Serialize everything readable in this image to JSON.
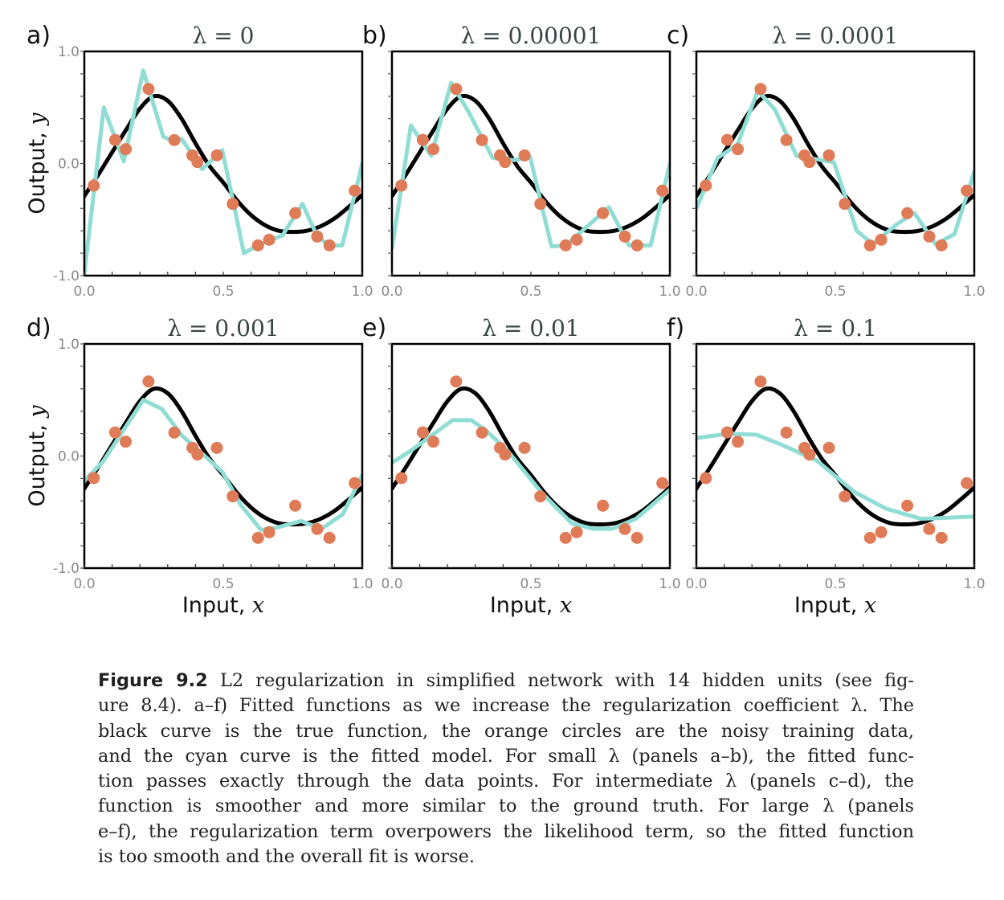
{
  "colors": {
    "true_curve": "#000000",
    "fitted_curve": "#8fddd4",
    "data_points": "#e07b57",
    "frame": "#000000",
    "tick_label": "#8a8a8a",
    "title": "#3a4646"
  },
  "caption": {
    "label": "Figure 9.2",
    "lines": [
      " L2 regularization in simplified network with 14 hidden units (see fig-",
      "ure 8.4).  a–f) Fitted functions as we increase the regularization coefficient λ. The",
      "black curve is the true function, the orange circles are the noisy training data,",
      "and the cyan curve is the fitted model. For small λ (panels a–b), the fitted func-",
      "tion passes exactly through the data points. For intermediate λ (panels c–d), the",
      "function is smoother and more similar to the ground truth. For large λ (panels",
      "e–f), the regularization term overpowers the likelihood term, so the fitted function",
      "is too smooth and the overall fit is worse."
    ]
  },
  "chart_data": [
    {
      "type": "line",
      "panel": "a)",
      "title": "λ = 0",
      "xlabel": "",
      "ylabel": "Output, y",
      "xlim": [
        0,
        1
      ],
      "ylim": [
        -1,
        1
      ],
      "xticks": [
        "0.0",
        "0.5",
        "1.0"
      ],
      "yticks": [
        "1.0",
        "0.0",
        "-1.0"
      ],
      "show_y_tick_labels": true,
      "grid": false,
      "fitted": {
        "x": [
          0,
          0.07,
          0.142,
          0.212,
          0.284,
          0.318,
          0.35,
          0.424,
          0.477,
          0.496,
          0.535,
          0.574,
          0.625,
          0.713,
          0.785,
          0.838,
          0.882,
          0.928,
          1.0
        ],
        "y": [
          -0.98,
          0.5,
          0.02,
          0.83,
          0.24,
          0.2,
          0.22,
          -0.05,
          0.07,
          0.12,
          -0.33,
          -0.8,
          -0.73,
          -0.64,
          -0.36,
          -0.65,
          -0.73,
          -0.73,
          0.0
        ]
      }
    },
    {
      "type": "line",
      "panel": "b)",
      "title": "λ = 0.00001",
      "xlabel": "",
      "ylabel": "",
      "xlim": [
        0,
        1
      ],
      "ylim": [
        -1,
        1
      ],
      "xticks": [
        "0.0",
        "0.5",
        "1.0"
      ],
      "yticks": [],
      "show_y_tick_labels": false,
      "grid": false,
      "fitted": {
        "x": [
          0,
          0.068,
          0.141,
          0.213,
          0.276,
          0.362,
          0.439,
          0.497,
          0.574,
          0.625,
          0.781,
          0.853,
          0.931,
          1.0
        ],
        "y": [
          -0.76,
          0.34,
          0.07,
          0.72,
          0.46,
          0.05,
          0.03,
          0.06,
          -0.74,
          -0.73,
          -0.39,
          -0.73,
          -0.73,
          0.0
        ]
      }
    },
    {
      "type": "line",
      "panel": "c)",
      "title": "λ = 0.0001",
      "xlabel": "",
      "ylabel": "",
      "xlim": [
        0,
        1
      ],
      "ylim": [
        -1,
        1
      ],
      "xticks": [
        "0.0",
        "0.5",
        "1.0"
      ],
      "yticks": [],
      "show_y_tick_labels": false,
      "grid": false,
      "fitted": {
        "x": [
          0,
          0.076,
          0.148,
          0.221,
          0.283,
          0.36,
          0.495,
          0.577,
          0.635,
          0.722,
          0.784,
          0.861,
          0.929,
          1.0
        ],
        "y": [
          -0.4,
          0.05,
          0.17,
          0.65,
          0.48,
          0.07,
          0.01,
          -0.6,
          -0.72,
          -0.54,
          -0.44,
          -0.72,
          -0.63,
          -0.07
        ]
      }
    },
    {
      "type": "line",
      "panel": "d)",
      "title": "λ = 0.001",
      "xlabel": "Input, x",
      "ylabel": "Output, y",
      "xlim": [
        0,
        1
      ],
      "ylim": [
        -1,
        1
      ],
      "xticks": [
        "0.0",
        "0.5",
        "1.0"
      ],
      "yticks": [
        "1.0",
        "0.0",
        "-1.0"
      ],
      "show_y_tick_labels": true,
      "grid": false,
      "fitted": {
        "x": [
          0,
          0.067,
          0.212,
          0.279,
          0.352,
          0.429,
          0.496,
          0.564,
          0.636,
          0.689,
          0.78,
          0.853,
          0.93,
          1.0
        ],
        "y": [
          -0.22,
          -0.05,
          0.5,
          0.42,
          0.18,
          0.01,
          -0.14,
          -0.44,
          -0.66,
          -0.64,
          -0.58,
          -0.65,
          -0.52,
          -0.17
        ]
      }
    },
    {
      "type": "line",
      "panel": "e)",
      "title": "λ = 0.01",
      "xlabel": "Input, x",
      "ylabel": "",
      "xlim": [
        0,
        1
      ],
      "ylim": [
        -1,
        1
      ],
      "xticks": [
        "0.0",
        "0.5",
        "1.0"
      ],
      "yticks": [],
      "show_y_tick_labels": false,
      "grid": false,
      "fitted": {
        "x": [
          0,
          0.064,
          0.218,
          0.285,
          0.338,
          0.415,
          0.54,
          0.647,
          0.724,
          0.791,
          0.878,
          1.0
        ],
        "y": [
          -0.06,
          0.04,
          0.32,
          0.32,
          0.23,
          0.05,
          -0.33,
          -0.6,
          -0.65,
          -0.65,
          -0.56,
          -0.3
        ]
      }
    },
    {
      "type": "line",
      "panel": "f)",
      "title": "λ = 0.1",
      "xlabel": "Input, x",
      "ylabel": "",
      "xlim": [
        0,
        1
      ],
      "ylim": [
        -1,
        1
      ],
      "xticks": [
        "0.0",
        "0.5",
        "1.0"
      ],
      "yticks": [],
      "show_y_tick_labels": false,
      "grid": false,
      "fitted": {
        "x": [
          0,
          0.115,
          0.216,
          0.298,
          0.433,
          0.568,
          0.683,
          0.808,
          1.0
        ],
        "y": [
          0.16,
          0.2,
          0.19,
          0.11,
          -0.04,
          -0.32,
          -0.47,
          -0.56,
          -0.54
        ]
      }
    }
  ],
  "shared_series": {
    "true_function": {
      "name": "true function",
      "x": [
        0,
        0.05,
        0.1,
        0.15,
        0.2,
        0.25,
        0.3,
        0.35,
        0.4,
        0.45,
        0.5,
        0.55,
        0.6,
        0.65,
        0.7,
        0.75,
        0.8,
        0.85,
        0.9,
        0.95,
        1.0
      ],
      "y": [
        -0.29,
        -0.1,
        0.1,
        0.3,
        0.49,
        0.6,
        0.56,
        0.4,
        0.18,
        -0.02,
        -0.17,
        -0.33,
        -0.46,
        -0.55,
        -0.6,
        -0.61,
        -0.6,
        -0.56,
        -0.49,
        -0.39,
        -0.28
      ]
    },
    "training_data": {
      "name": "noisy training data",
      "x": [
        0.034,
        0.111,
        0.149,
        0.231,
        0.324,
        0.389,
        0.407,
        0.477,
        0.534,
        0.625,
        0.665,
        0.759,
        0.838,
        0.882,
        0.973
      ],
      "y": [
        -0.197,
        0.211,
        0.128,
        0.665,
        0.209,
        0.073,
        0.013,
        0.073,
        -0.36,
        -0.73,
        -0.68,
        -0.443,
        -0.651,
        -0.73,
        -0.242
      ]
    }
  }
}
